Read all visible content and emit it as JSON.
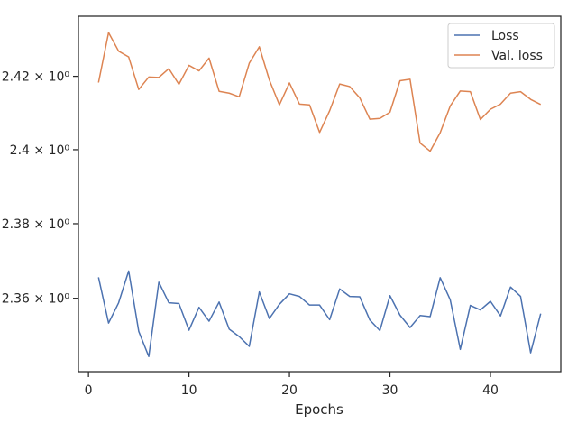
{
  "chart_data": {
    "type": "line",
    "title": "",
    "xlabel": "Epochs",
    "ylabel": "",
    "xlim": [
      -1,
      47
    ],
    "ylim": [
      2.3405,
      2.4365
    ],
    "yscale": "log",
    "grid": false,
    "legend_position": "top-right",
    "xticks": [
      0,
      10,
      20,
      30,
      40
    ],
    "xtick_labels": [
      "0",
      "10",
      "20",
      "30",
      "40"
    ],
    "yticks": [
      2.36,
      2.38,
      2.4,
      2.42
    ],
    "ytick_labels": [
      "2.36 × 10⁰",
      "2.38 × 10⁰",
      "2.4 × 10⁰",
      "2.42 × 10⁰"
    ],
    "x": [
      1,
      2,
      3,
      4,
      5,
      6,
      7,
      8,
      9,
      10,
      11,
      12,
      13,
      14,
      15,
      16,
      17,
      18,
      19,
      20,
      21,
      22,
      23,
      24,
      25,
      26,
      27,
      28,
      29,
      30,
      31,
      32,
      33,
      34,
      35,
      36,
      37,
      38,
      39,
      40,
      41,
      42,
      43,
      44,
      45
    ],
    "series": [
      {
        "name": "Loss",
        "color": "#4c72b0",
        "values": [
          2.3656,
          2.3534,
          2.3588,
          2.3673,
          2.3512,
          2.3445,
          2.3643,
          2.3588,
          2.3586,
          2.3515,
          2.3576,
          2.3539,
          2.359,
          2.3518,
          2.3498,
          2.3472,
          2.3617,
          2.3546,
          2.3584,
          2.3612,
          2.3605,
          2.3582,
          2.3582,
          2.3543,
          2.3625,
          2.3605,
          2.3604,
          2.3542,
          2.3514,
          2.3607,
          2.3555,
          2.3522,
          2.3554,
          2.3551,
          2.3655,
          2.3596,
          2.3464,
          2.3581,
          2.3569,
          2.3592,
          2.3553,
          2.363,
          2.3605,
          2.3455,
          2.3559
        ]
      },
      {
        "name": "Val. loss",
        "color": "#dd8452",
        "values": [
          2.4183,
          2.432,
          2.4269,
          2.4253,
          2.4164,
          2.4198,
          2.4197,
          2.4221,
          2.4178,
          2.423,
          2.4215,
          2.425,
          2.4159,
          2.4154,
          2.4144,
          2.4236,
          2.4281,
          2.419,
          2.4122,
          2.4182,
          2.4124,
          2.4122,
          2.4047,
          2.4106,
          2.4179,
          2.4172,
          2.4141,
          2.4083,
          2.4085,
          2.4102,
          2.4188,
          2.4192,
          2.4018,
          2.3996,
          2.4046,
          2.4119,
          2.416,
          2.4158,
          2.4082,
          2.411,
          2.4124,
          2.4154,
          2.4158,
          2.4137,
          2.4123
        ]
      }
    ]
  }
}
